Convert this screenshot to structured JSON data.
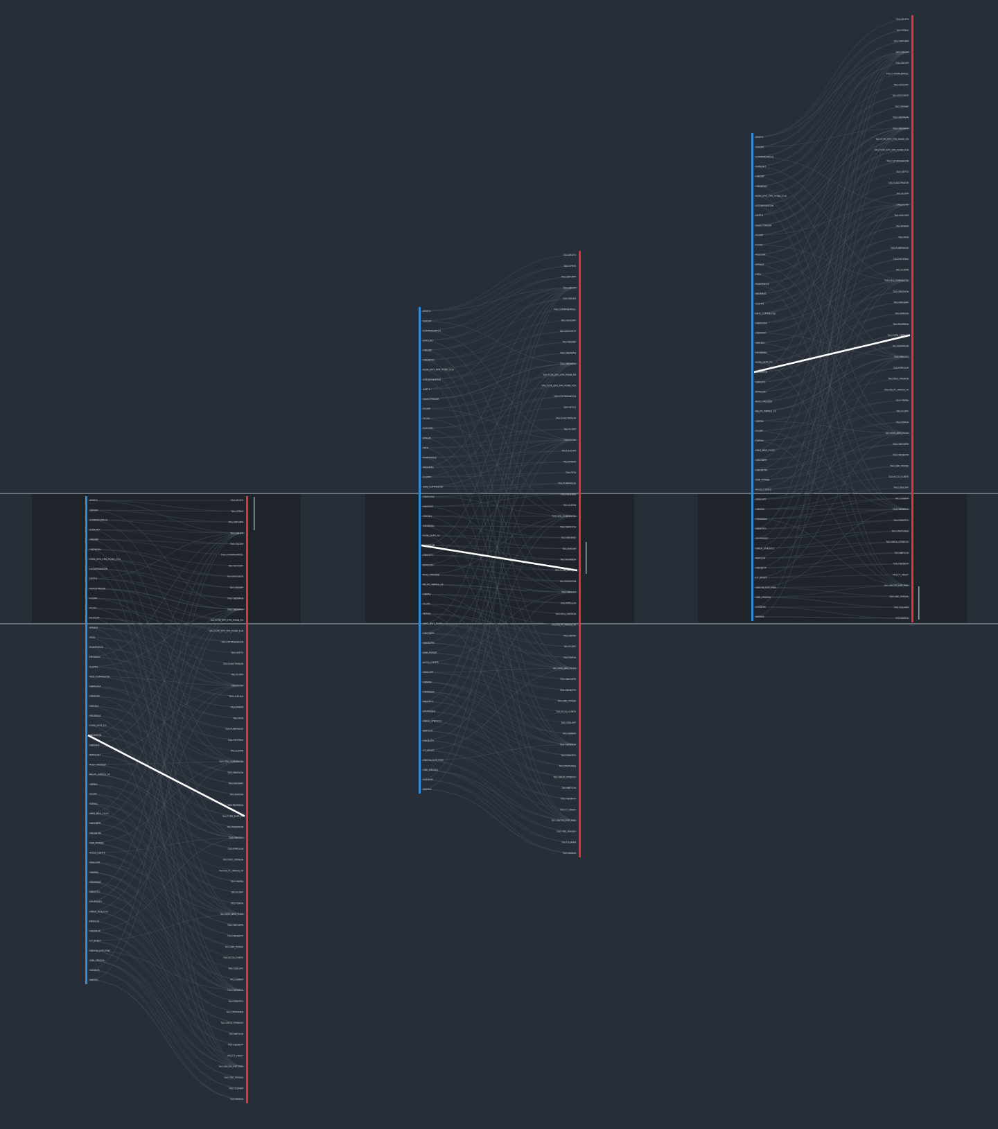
{
  "colors": {
    "background": "#282e37",
    "left_bar": "#2f8fdd",
    "right_bar": "#e03438",
    "link": "#3d4550",
    "highlight": "#ffffff",
    "band": "#1f242b"
  },
  "diagram": {
    "type": "sankey-bipartite",
    "left_nodes": [
      "ARGFX",
      "CBFUM",
      "COMPAREMFSIL",
      "GVDCWT",
      "OBDIBP",
      "OBDNFAN",
      "FCPK_EPO_FPR_POND_FLN",
      "CSTVMSANFDN",
      "GEFTU",
      "GUACTPADUR",
      "FCOPP",
      "FCOIU",
      "HLECHM",
      "EPRAM",
      "FKTA",
      "PUMPRIEGE",
      "FBGERAS",
      "CLEMN",
      "HEQ_CUMMESTJA",
      "OBVEVOA",
      "OBVEFAT",
      "GMCNH",
      "FBGRBDA",
      "FCPB_SEPF_FK",
      "FBGMIFSN",
      "OBVGFO",
      "RPRCLUH",
      "RGQ_ORERDB",
      "RB_PC_ARREG_HI",
      "OBPRA",
      "FCOPF",
      "FDPHA",
      "HMG_BRG_FLOG",
      "OBCGBPR",
      "OBCBEPM",
      "CBR_PORDE",
      "ACCQ_CUNTE",
      "CBGLUPF",
      "OBNRM",
      "OBVBBDA",
      "FBEKPTO",
      "CPUPUDES",
      "OBGA_STNDOCI",
      "NBFCUH",
      "OBCBEFP",
      "CT_SREET",
      "OBCON_EXP_PREI",
      "OBE_FRSSEA",
      "OLEAHM",
      "MANUA"
    ],
    "right_nodes": [
      "TAG:ARGFX",
      "TAG:CPRVS",
      "TAG:CBFUMM",
      "TAG:CBFUM",
      "TAG:CBCUM",
      "TAG:COMPAREMFSIL",
      "TAG:GVDCWT",
      "TAG:GVDCWTP",
      "TAG:OBDIBP",
      "TAG:OBDNFAN",
      "TAG:OBDNFAH",
      "TAG:FCPK_EPO_FPR_POND_FD",
      "TAG:FCPK_EPO_FPR_POND_FLN",
      "TAG:CSTVMSANFDN",
      "TAG:GEFTU",
      "TAG:GUACTPADUR",
      "TAG:FCOPP",
      "TAG:FCOIU",
      "TAG:HLECHM",
      "TAG:EPRAM",
      "TAG:FKTA",
      "TAG:PUMPRIEGE",
      "TAG:FBGERAS",
      "TAG:CLEMN",
      "TAG:HEQ_CUMMESTJA",
      "TAG:OBVEVOA",
      "TAG:OBVEFAT",
      "TAG:GMCNH",
      "TAG:FBGRBDA",
      "TAG:FCPB_SEPF_FK",
      "TAG:FBGMIFSN",
      "TAG:OBVGFO",
      "TAG:RPRCLUH",
      "TAG:RGQ_ORERDB",
      "TAG:RB_PC_ARREG_HI",
      "TAG:OBPRA",
      "TAG:FCOPF",
      "TAG:FDPHA",
      "TAG:HMG_BRG_FLOG",
      "TAG:OBCGBPR",
      "TAG:OBCBEPM",
      "TAG:CBR_PORDE",
      "TAG:ACCQ_CUNTE",
      "TAG:CBGLUPF",
      "TAG:OBNRM",
      "TAG:OBVBBDA",
      "TAG:FBEKPTO",
      "TAG:CPUPUDES",
      "TAG:OBGA_STNDOCI",
      "TAG:NBFCUH",
      "TAG:OBCBEFP",
      "TAG:CT_SREET",
      "TAG:OBCON_EXP_PREI",
      "TAG:OBE_FRSSEA",
      "TAG:OLEAHM",
      "TAG:MANUA"
    ],
    "highlighted_link": {
      "from": "FBGMIFSN",
      "to": "TAG:FCPB_SEPF_FK"
    }
  }
}
